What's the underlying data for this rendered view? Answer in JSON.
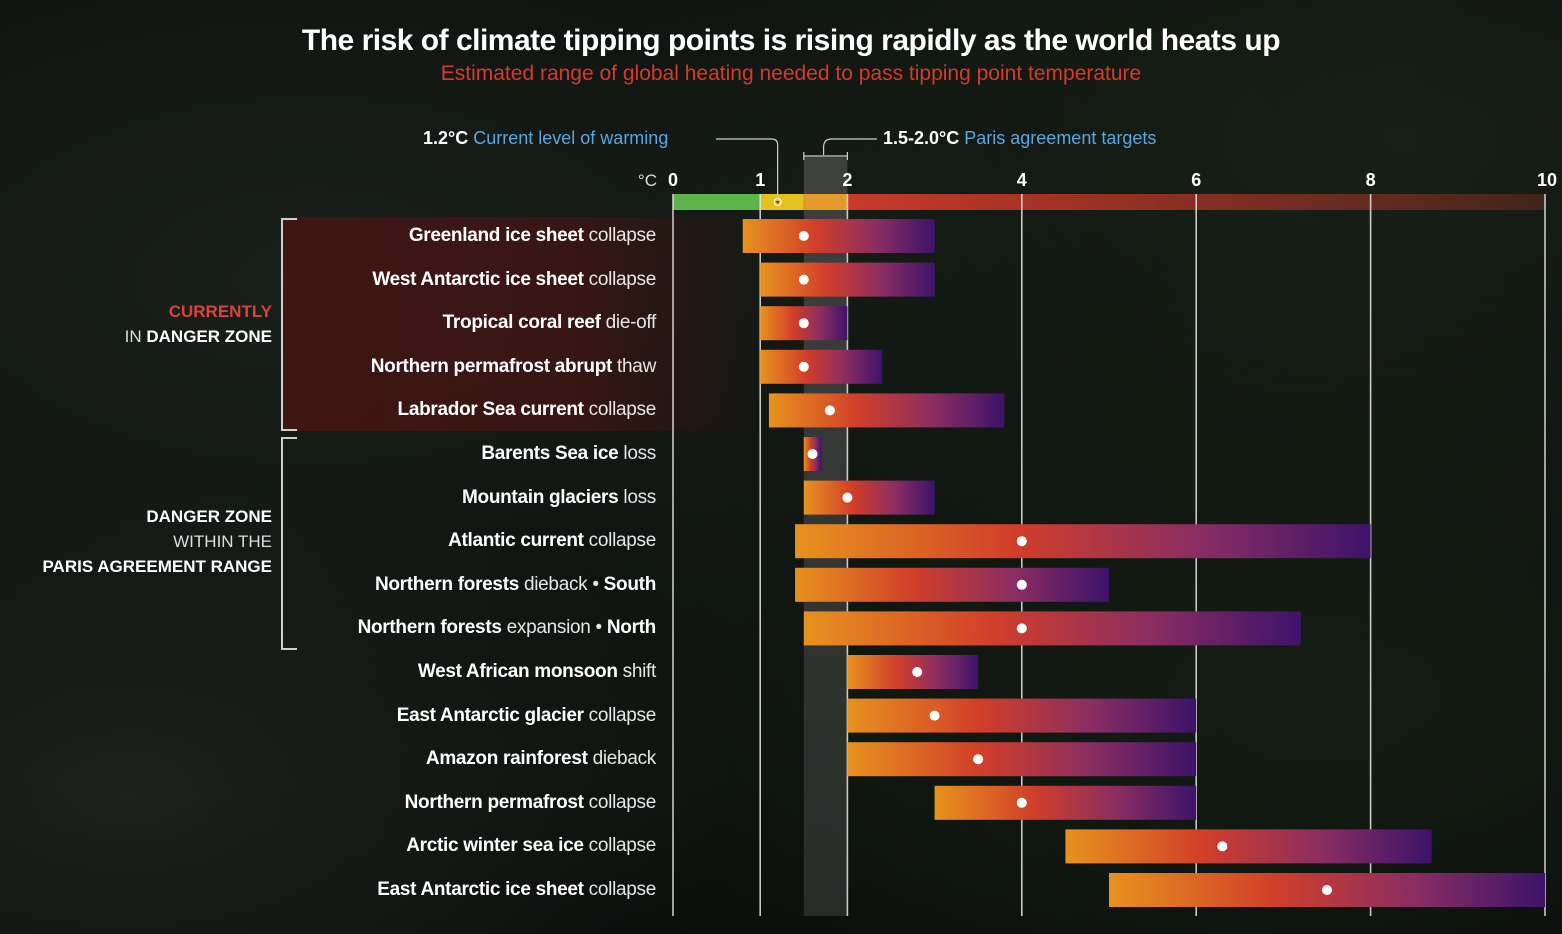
{
  "header": {
    "title": "The risk of climate tipping points is rising rapidly as the world heats up",
    "subtitle": "Estimated range of global heating needed to pass tipping point temperature"
  },
  "annotations": {
    "current": {
      "value": "1.2°C",
      "text": "Current level of warming",
      "temp": 1.2
    },
    "paris": {
      "value": "1.5-2.0°C",
      "text": "Paris agreement targets",
      "range": [
        1.5,
        2.0
      ]
    }
  },
  "groups": {
    "current_danger": {
      "line1": "CURRENTLY",
      "line2_pre": "IN ",
      "line2_bold": "DANGER ZONE"
    },
    "paris_danger": {
      "line1": "DANGER ZONE",
      "line2": "WITHIN THE",
      "line3": "PARIS AGREEMENT RANGE"
    }
  },
  "colors": {
    "title": "#ffffff",
    "subtitle": "#d63b2a",
    "annotation_blue": "#5aa7e0",
    "bar_start": "#e8921e",
    "bar_mid": "#d13e2a",
    "bar_end": "#3d136a",
    "scale_green": "#5db34a",
    "scale_yellow": "#e3c21d",
    "scale_orange": "#e39a2a",
    "scale_red": "#c9392a"
  },
  "chart_data": {
    "type": "range-bar",
    "title": "The risk of climate tipping points is rising rapidly as the world heats up",
    "subtitle": "Estimated range of global heating needed to pass tipping point temperature",
    "xlabel": "°C",
    "unit_label": "°C",
    "xlim": [
      0,
      10
    ],
    "ticks": [
      0,
      1,
      2,
      4,
      6,
      8,
      10
    ],
    "grid": true,
    "scale_bands": [
      {
        "from": 0,
        "to": 1,
        "color": "#5db34a"
      },
      {
        "from": 1,
        "to": 1.5,
        "color": "#e3c21d"
      },
      {
        "from": 1.5,
        "to": 2,
        "color": "#e39a2a"
      },
      {
        "from": 2,
        "to": 10,
        "color": "#c9392a"
      }
    ],
    "current_warming": 1.2,
    "paris_range": [
      1.5,
      2.0
    ],
    "series": [
      {
        "bold": "Greenland ice sheet",
        "light": "collapse",
        "suffix": "",
        "min": 0.8,
        "max": 3.0,
        "central": 1.5,
        "group": "current"
      },
      {
        "bold": "West Antarctic ice sheet",
        "light": "collapse",
        "suffix": "",
        "min": 1.0,
        "max": 3.0,
        "central": 1.5,
        "group": "current"
      },
      {
        "bold": "Tropical coral reef",
        "light": "die-off",
        "suffix": "",
        "min": 1.0,
        "max": 2.0,
        "central": 1.5,
        "group": "current"
      },
      {
        "bold": "Northern permafrost abrupt",
        "light": "thaw",
        "suffix": "",
        "min": 1.0,
        "max": 2.4,
        "central": 1.5,
        "group": "current"
      },
      {
        "bold": "Labrador Sea current",
        "light": "collapse",
        "suffix": "",
        "min": 1.1,
        "max": 3.8,
        "central": 1.8,
        "group": "current"
      },
      {
        "bold": "Barents Sea ice",
        "light": "loss",
        "suffix": "",
        "min": 1.5,
        "max": 1.7,
        "central": 1.6,
        "group": "paris"
      },
      {
        "bold": "Mountain glaciers",
        "light": "loss",
        "suffix": "",
        "min": 1.5,
        "max": 3.0,
        "central": 2.0,
        "group": "paris"
      },
      {
        "bold": "Atlantic current",
        "light": "collapse",
        "suffix": "",
        "min": 1.4,
        "max": 8.0,
        "central": 4.0,
        "group": "paris"
      },
      {
        "bold": "Northern forests",
        "light": "dieback •",
        "suffix": "South",
        "min": 1.4,
        "max": 5.0,
        "central": 4.0,
        "group": "paris"
      },
      {
        "bold": "Northern forests",
        "light": "expansion •",
        "suffix": "North",
        "min": 1.5,
        "max": 7.2,
        "central": 4.0,
        "group": "paris"
      },
      {
        "bold": "West African monsoon",
        "light": "shift",
        "suffix": "",
        "min": 2.0,
        "max": 3.5,
        "central": 2.8,
        "group": ""
      },
      {
        "bold": "East Antarctic glacier",
        "light": "collapse",
        "suffix": "",
        "min": 2.0,
        "max": 6.0,
        "central": 3.0,
        "group": ""
      },
      {
        "bold": "Amazon rainforest",
        "light": "dieback",
        "suffix": "",
        "min": 2.0,
        "max": 6.0,
        "central": 3.5,
        "group": ""
      },
      {
        "bold": "Northern permafrost",
        "light": "collapse",
        "suffix": "",
        "min": 3.0,
        "max": 6.0,
        "central": 4.0,
        "group": ""
      },
      {
        "bold": "Arctic winter sea ice",
        "light": "collapse",
        "suffix": "",
        "min": 4.5,
        "max": 8.7,
        "central": 6.3,
        "group": ""
      },
      {
        "bold": "East Antarctic ice sheet",
        "light": "collapse",
        "suffix": "",
        "min": 5.0,
        "max": 10.0,
        "central": 7.5,
        "group": ""
      }
    ]
  }
}
